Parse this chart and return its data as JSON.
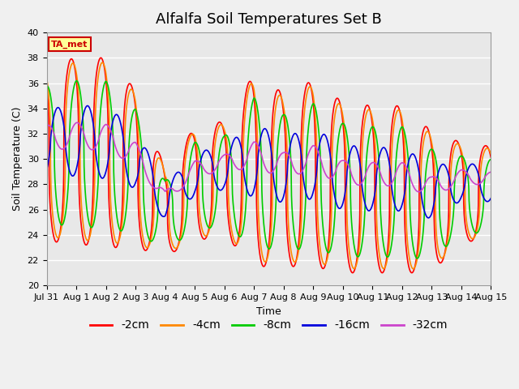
{
  "title": "Alfalfa Soil Temperatures Set B",
  "xlabel": "Time",
  "ylabel": "Soil Temperature (C)",
  "ylim": [
    20,
    40
  ],
  "xlim_days": [
    0,
    15
  ],
  "x_tick_labels": [
    "Jul 31",
    "Aug 1",
    "Aug 2",
    "Aug 3",
    "Aug 4",
    "Aug 5",
    "Aug 6",
    "Aug 7",
    "Aug 8",
    "Aug 9",
    "Aug 10",
    "Aug 11",
    "Aug 12",
    "Aug 13",
    "Aug 14",
    "Aug 15"
  ],
  "background_color": "#e8e8e8",
  "fig_color": "#f0f0f0",
  "annotation_text": "TA_met",
  "annotation_bg": "#ffff99",
  "annotation_border": "#cc0000",
  "series_labels": [
    "-2cm",
    "-4cm",
    "-8cm",
    "-16cm",
    "-32cm"
  ],
  "series_colors": [
    "#ff0000",
    "#ff8800",
    "#00cc00",
    "#0000dd",
    "#cc44cc"
  ],
  "legend_loc": "lower center",
  "title_fontsize": 13,
  "label_fontsize": 9,
  "tick_fontsize": 8,
  "legend_fontsize": 10,
  "grid_color": "#ffffff",
  "linewidth": 1.2
}
